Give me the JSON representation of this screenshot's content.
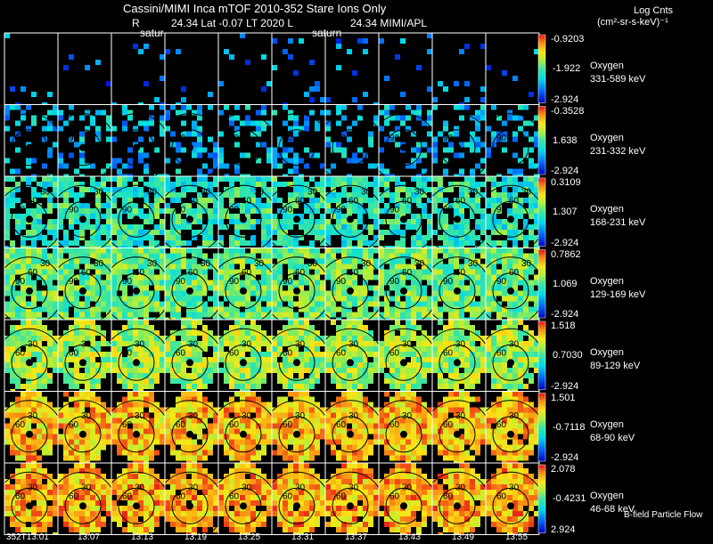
{
  "header": {
    "line1": "Cassini/MIMI Inca mTOF  2010-352   Stare   Ions Only",
    "line2_left": "R",
    "line2_mid": "24.34 Lat -0.07 LT 2020 L",
    "line2_right": "24.34  MIMI/APL",
    "overlay_a": "satur",
    "overlay_b": "saturn",
    "units_line1": "Log Cnts",
    "units_line2": "(cm²-sr-s-keV)⁻¹"
  },
  "footer_note": "B-field Particle Flow",
  "chart_data": {
    "type": "heatmap",
    "title": "Cassini/MIMI Inca mTOF 2010-352 Stare Ions Only",
    "time_labels": [
      "352T13:01",
      "13:07",
      "13:13",
      "13:19",
      "13:25",
      "13:31",
      "13:37",
      "13:43",
      "13:49",
      "13:55"
    ],
    "rows": [
      {
        "species": "Oxygen",
        "range": "331-589 keV",
        "scale_max": "-0.9203",
        "scale_mid": "-1.922",
        "scale_min": "-2.924",
        "density": 0.05,
        "level": 0.2,
        "contours": []
      },
      {
        "species": "Oxygen",
        "range": "231-332 keV",
        "scale_max": "-0.3528",
        "scale_mid": "1.638",
        "scale_min": "-2.924",
        "density": 0.32,
        "level": 0.3,
        "contours": [
          "90"
        ]
      },
      {
        "species": "Oxygen",
        "range": "168-231 keV",
        "scale_max": "0.3109",
        "scale_mid": "1.307",
        "scale_min": "-2.924",
        "density": 0.75,
        "level": 0.45,
        "contours": [
          "90",
          "60",
          "30"
        ]
      },
      {
        "species": "Oxygen",
        "range": "129-169 keV",
        "scale_max": "0.7862",
        "scale_mid": "1.069",
        "scale_min": "-2.924",
        "density": 0.9,
        "level": 0.55,
        "contours": [
          "90",
          "60",
          "30"
        ]
      },
      {
        "species": "Oxygen",
        "range": "89-129 keV",
        "scale_max": "1.518",
        "scale_mid": "0.7030",
        "scale_min": "-2.924",
        "density": 0.95,
        "level": 0.62,
        "contours": [
          "60",
          "30"
        ]
      },
      {
        "species": "Oxygen",
        "range": "68-90 keV",
        "scale_max": "1.501",
        "scale_mid": "-0.7118",
        "scale_min": "-2.924",
        "density": 0.97,
        "level": 0.8,
        "contours": [
          "60",
          "30"
        ]
      },
      {
        "species": "Oxygen",
        "range": "46-68 keV",
        "scale_max": "2.078",
        "scale_mid": "-0.4231",
        "scale_min": "2.924",
        "density": 0.97,
        "level": 0.82,
        "contours": [
          "60",
          "30"
        ]
      }
    ]
  }
}
